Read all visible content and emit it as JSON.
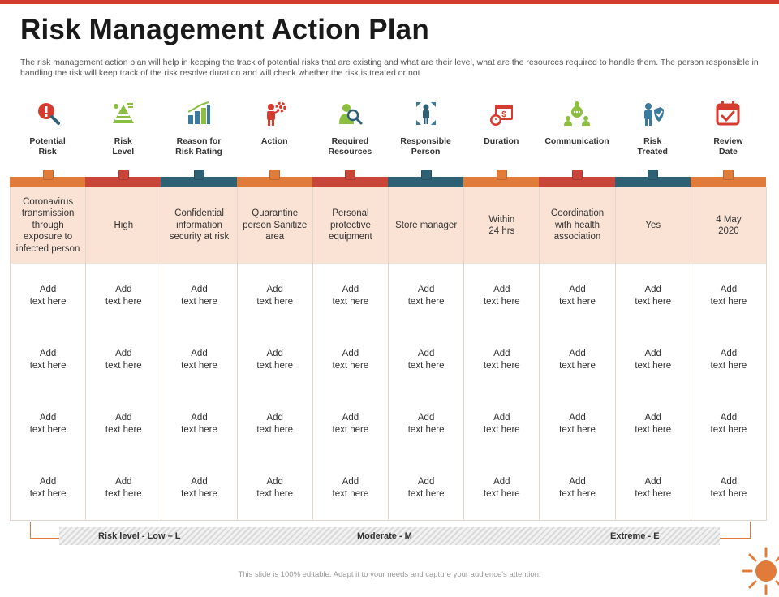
{
  "slide": {
    "title": "Risk Management Action Plan",
    "description": "The risk management action plan will help in keeping the track of potential risks  that are existing and what are their level, what are the resources required to handle them. The person responsible in handling the risk will keep track of the risk resolve duration and will check whether the risk is treated or not.",
    "footer": "This slide is 100% editable. Adapt it to your needs and capture your audience's attention."
  },
  "colors": {
    "accent_red": "#d63b2f",
    "orange": "#e07b3a",
    "red": "#c9453a",
    "teal": "#2f6175",
    "highlight": "#fae3d5",
    "icon_green": "#8cbf3f",
    "icon_blue": "#3b7a9c"
  },
  "columns": [
    {
      "label": "Potential\nRisk",
      "icon": "magnifier-alert-icon",
      "stripe": "orange",
      "value": "Coronavirus transmission through exposure to infected person"
    },
    {
      "label": "Risk\nLevel",
      "icon": "pyramid-chart-icon",
      "stripe": "red",
      "value": "High"
    },
    {
      "label": "Reason for\nRisk Rating",
      "icon": "bar-chart-icon",
      "stripe": "teal",
      "value": "Confidential information security at risk"
    },
    {
      "label": "Action",
      "icon": "person-gear-icon",
      "stripe": "orange",
      "value": "Quarantine person Sanitize area"
    },
    {
      "label": "Required\nResources",
      "icon": "person-search-icon",
      "stripe": "red",
      "value": "Personal protective equipment"
    },
    {
      "label": "Responsible\nPerson",
      "icon": "person-network-icon",
      "stripe": "teal",
      "value": "Store manager"
    },
    {
      "label": "Duration",
      "icon": "calendar-clock-icon",
      "stripe": "orange",
      "value": "Within\n24 hrs"
    },
    {
      "label": "Communication",
      "icon": "team-chat-icon",
      "stripe": "red",
      "value": "Coordination with health association"
    },
    {
      "label": "Risk\nTreated",
      "icon": "person-shield-icon",
      "stripe": "teal",
      "value": "Yes"
    },
    {
      "label": "Review\nDate",
      "icon": "calendar-check-icon",
      "stripe": "orange",
      "value": "4 May\n2020"
    }
  ],
  "placeholder_text": "Add\ntext here",
  "placeholder_rows": 4,
  "legend": {
    "low": "Risk level - Low – L",
    "moderate": "Moderate - M",
    "extreme": "Extreme - E"
  }
}
